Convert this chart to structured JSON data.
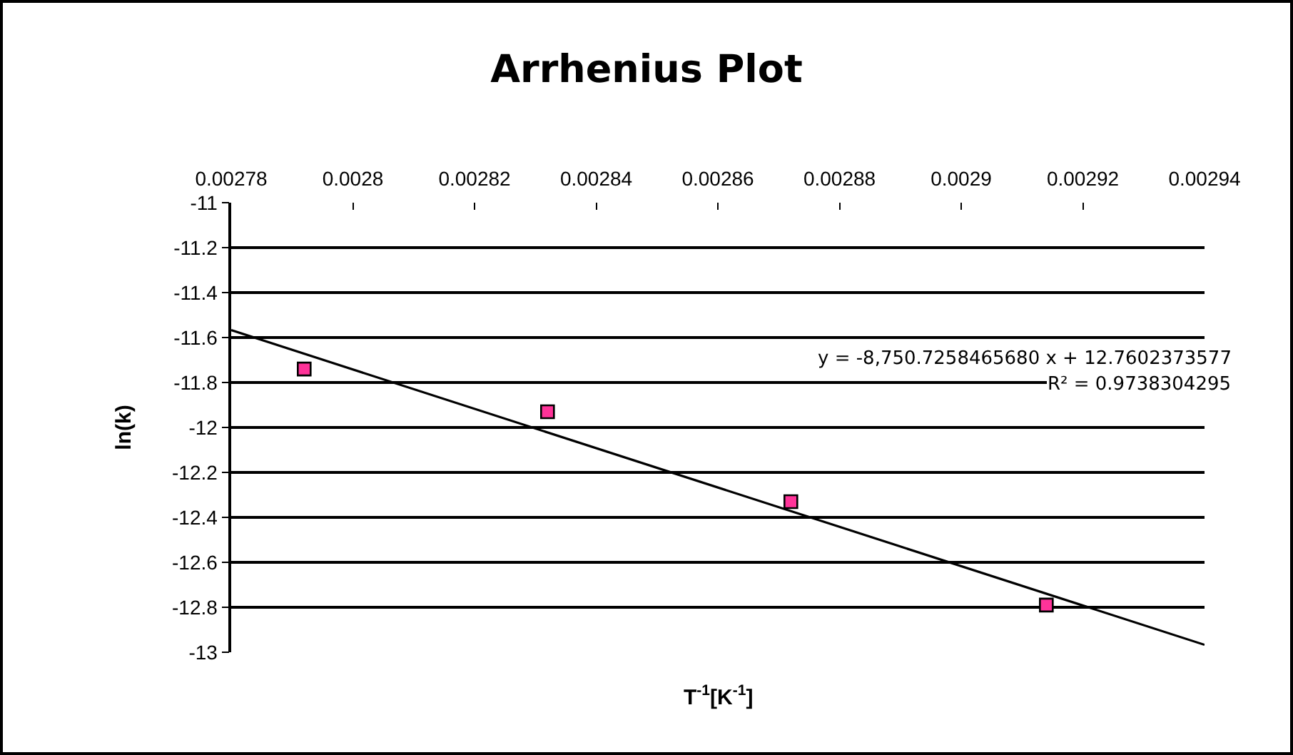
{
  "chart_data": {
    "type": "scatter",
    "title": "Arrhenius Plot",
    "xlabel": "T$^{-1}$[K$^{-1}$]",
    "ylabel": "ln(k)",
    "x": [
      0.002792,
      0.002832,
      0.002872,
      0.002914
    ],
    "series": [
      {
        "color": "#ff3399",
        "marker": "square",
        "values": [
          -11.74,
          -11.93,
          -12.33,
          -12.79
        ]
      },
      {
        "type": "line",
        "color": "#000000",
        "marker": "none",
        "line_style": "solid",
        "x": [
          0.00278,
          0.00294
        ],
        "values": [
          -11.567,
          -12.967
        ]
      }
    ],
    "xlim": [
      0.00278,
      0.00294
    ],
    "xticks": [
      0.00278,
      0.0028,
      0.00282,
      0.00284,
      0.00286,
      0.00288,
      0.0029,
      0.00292,
      0.00294
    ],
    "ylim": [
      -13,
      -11
    ],
    "yticks": [
      -11,
      -11.2,
      -11.4,
      -11.6,
      -11.8,
      -12,
      -12.2,
      -12.4,
      -12.6,
      -12.8,
      -13
    ],
    "grid": "y",
    "annotations": [
      "y = -8,750.7258465680 x + 12.7602373577",
      "R² = 0.9738304295"
    ]
  }
}
